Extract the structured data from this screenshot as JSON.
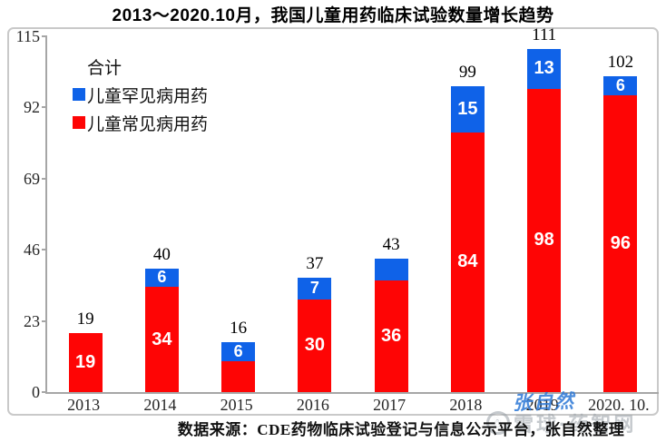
{
  "title": "2013～2020.10月，我国儿童用药临床试验数量增长趋势",
  "legend": {
    "total_label": "合计",
    "items": [
      {
        "id": "rare",
        "label": "儿童罕见病用药",
        "color": "#0f62e8"
      },
      {
        "id": "common",
        "label": "儿童常见病用药",
        "color": "#fe0505"
      }
    ]
  },
  "chart_data": {
    "type": "bar",
    "stacked": true,
    "title": "2013～2020.10月，我国儿童用药临床试验数量增长趋势",
    "categories": [
      "2013",
      "2014",
      "2015",
      "2016",
      "2017",
      "2018",
      "2019",
      "2020. 10."
    ],
    "series": [
      {
        "name": "儿童常见病用药",
        "color": "#fe0505",
        "values": [
          19,
          34,
          10,
          30,
          36,
          84,
          98,
          96
        ],
        "labels": [
          "19",
          "34",
          "",
          "30",
          "36",
          "84",
          "98",
          "96"
        ]
      },
      {
        "name": "儿童罕见病用药",
        "color": "#0f62e8",
        "values": [
          0,
          6,
          6,
          7,
          7,
          15,
          13,
          6
        ],
        "labels": [
          "",
          "6",
          "6",
          "7",
          "",
          "15",
          "13",
          "6"
        ]
      }
    ],
    "totals": [
      "19",
      "40",
      "16",
      "37",
      "43",
      "99",
      "111",
      "102"
    ],
    "yticks": [
      0,
      23,
      46,
      69,
      92,
      115
    ],
    "ylim": [
      0,
      115
    ],
    "grid": false,
    "legend_position": "top-left"
  },
  "source": "数据来源：CDE药物临床试验登记与信息公示平台，张自然整理",
  "watermarks": {
    "signature": "张自然",
    "site": "雪球·药智网",
    "site_logo": "snowball-logo"
  },
  "colors": {
    "common_series": "#fe0505",
    "rare_series": "#0f62e8",
    "axis": "#a6a6a6",
    "box_border": "#c9c9c9",
    "bar_label": "#ffffff",
    "signature_blue": "#2d78d6"
  }
}
